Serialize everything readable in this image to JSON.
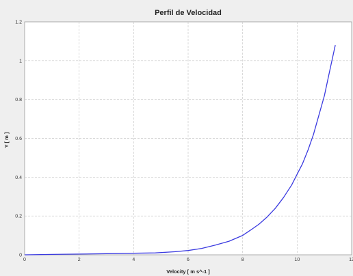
{
  "chart_data": {
    "type": "line",
    "title": "Perfil de Velocidad",
    "xlabel": "Velocity [ m s^-1 ]",
    "ylabel": "Y [ m ]",
    "xlim": [
      0,
      12
    ],
    "ylim": [
      0,
      1.2
    ],
    "xticks": [
      "0",
      "2",
      "4",
      "6",
      "8",
      "10",
      "12"
    ],
    "yticks": [
      "0",
      "0.2",
      "0.4",
      "0.6",
      "0.8",
      "1",
      "1.2"
    ],
    "grid": true,
    "colors": {
      "line": "#3a3ae0",
      "plot_bg": "#ffffff",
      "panel_bg": "#efefef",
      "grid": "#c8c8c8"
    },
    "series": [
      {
        "x": [
          0.0,
          1.0,
          2.0,
          3.0,
          4.0,
          4.8,
          5.5,
          6.0,
          6.5,
          7.0,
          7.5,
          8.0,
          8.3,
          8.6,
          8.9,
          9.2,
          9.5,
          9.8,
          10.0,
          10.2,
          10.4,
          10.6,
          10.8,
          11.0,
          11.2,
          11.4
        ],
        "y": [
          0.0,
          0.002,
          0.004,
          0.006,
          0.008,
          0.01,
          0.016,
          0.022,
          0.033,
          0.05,
          0.07,
          0.1,
          0.128,
          0.158,
          0.195,
          0.24,
          0.295,
          0.36,
          0.415,
          0.47,
          0.54,
          0.62,
          0.72,
          0.82,
          0.95,
          1.08
        ]
      }
    ]
  }
}
